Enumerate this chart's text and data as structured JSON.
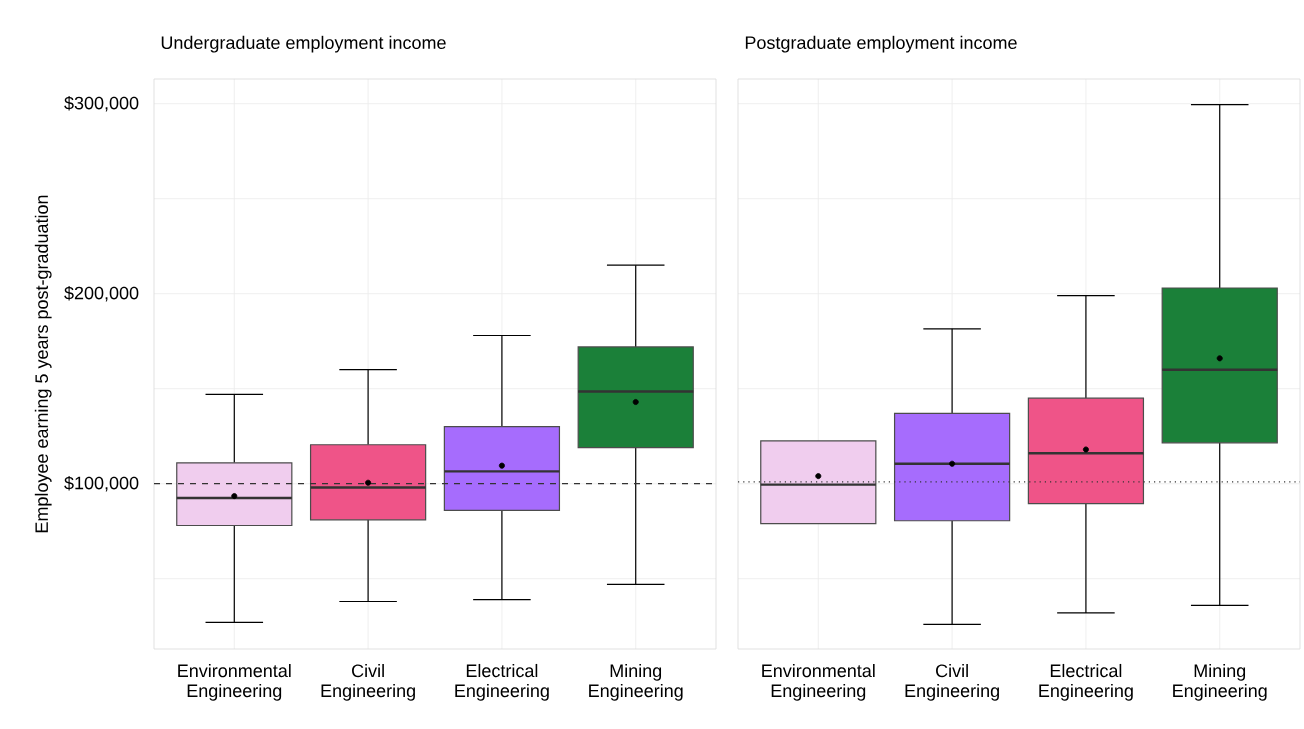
{
  "chart_data": [
    {
      "type": "box",
      "title": "Undergraduate employment income",
      "ylabel": "Employee earning 5 years post-graduation",
      "categories": [
        "Environmental Engineering",
        "Civil Engineering",
        "Electrical Engineering",
        "Mining Engineering"
      ],
      "colors": [
        "#f0cdee",
        "#ef5488",
        "#a66cfd",
        "#1b8039"
      ],
      "boxes": [
        {
          "low": 27000,
          "q1": 78000,
          "median": 92500,
          "q3": 111000,
          "high": 147000,
          "mean": 93500
        },
        {
          "low": 38000,
          "q1": 81000,
          "median": 98000,
          "q3": 120500,
          "high": 160000,
          "mean": 100500
        },
        {
          "low": 39000,
          "q1": 86000,
          "median": 106500,
          "q3": 130000,
          "high": 178000,
          "mean": 109500
        },
        {
          "low": 47000,
          "q1": 119000,
          "median": 148500,
          "q3": 172000,
          "high": 215000,
          "mean": 143000
        }
      ],
      "ylim": [
        13000,
        313000
      ],
      "yticks": [
        {
          "value": 50000,
          "label": null
        },
        {
          "value": 100000,
          "label": "$100,000"
        },
        {
          "value": 150000,
          "label": null
        },
        {
          "value": 200000,
          "label": "$200,000"
        },
        {
          "value": 250000,
          "label": null
        },
        {
          "value": 300000,
          "label": "$300,000"
        }
      ],
      "grid": true,
      "ref_lines": [
        {
          "axis": "y",
          "value": 100000,
          "line_style": "dashed"
        }
      ]
    },
    {
      "type": "box",
      "title": "Postgraduate employment income",
      "categories": [
        "Environmental Engineering",
        "Civil Engineering",
        "Electrical Engineering",
        "Mining Engineering"
      ],
      "colors": [
        "#f0cdee",
        "#a66cfd",
        "#ef5488",
        "#1b8039"
      ],
      "boxes": [
        {
          "low": 79000,
          "q1": 79000,
          "median": 99500,
          "q3": 122500,
          "high": 122500,
          "mean": 104000
        },
        {
          "low": 26000,
          "q1": 80500,
          "median": 110500,
          "q3": 137000,
          "high": 181500,
          "mean": 110500
        },
        {
          "low": 32000,
          "q1": 89500,
          "median": 116000,
          "q3": 145000,
          "high": 199000,
          "mean": 118000
        },
        {
          "low": 36000,
          "q1": 121500,
          "median": 160000,
          "q3": 203000,
          "high": 299500,
          "mean": 166000
        }
      ],
      "ylim": [
        13000,
        313000
      ],
      "yticks": [
        {
          "value": 50000,
          "label": null
        },
        {
          "value": 100000,
          "label": null
        },
        {
          "value": 150000,
          "label": null
        },
        {
          "value": 200000,
          "label": null
        },
        {
          "value": 250000,
          "label": null
        },
        {
          "value": 300000,
          "label": null
        }
      ],
      "grid": true,
      "tick_labels": "x",
      "ref_lines": [
        {
          "axis": "y",
          "value": 101000,
          "line_style": "dotted"
        }
      ]
    }
  ]
}
